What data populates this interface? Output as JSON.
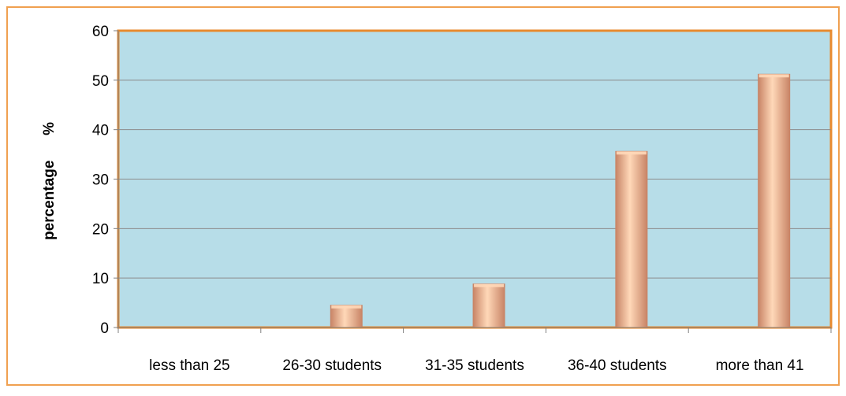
{
  "chart_data": {
    "type": "bar",
    "categories": [
      "less than 25",
      "26-30 students",
      "31-35 students",
      "36-40 students",
      "more than 41"
    ],
    "values": [
      0,
      4.5,
      8.8,
      35.6,
      51.2
    ],
    "title": "",
    "xlabel": "",
    "ylabel": "percentage      %",
    "ylim": [
      0,
      60
    ],
    "yticks": [
      0,
      10,
      20,
      30,
      40,
      50,
      60
    ],
    "grid": true,
    "legend": "none"
  },
  "colors": {
    "frame_border": "#F0A050",
    "plot_background": "#B7DDE8",
    "plot_border": "#E88A2E",
    "bar_light": "#FFD8B8",
    "bar_mid": "#F4B08A",
    "bar_dark": "#C88466",
    "gridline": "#8C8C8C"
  }
}
